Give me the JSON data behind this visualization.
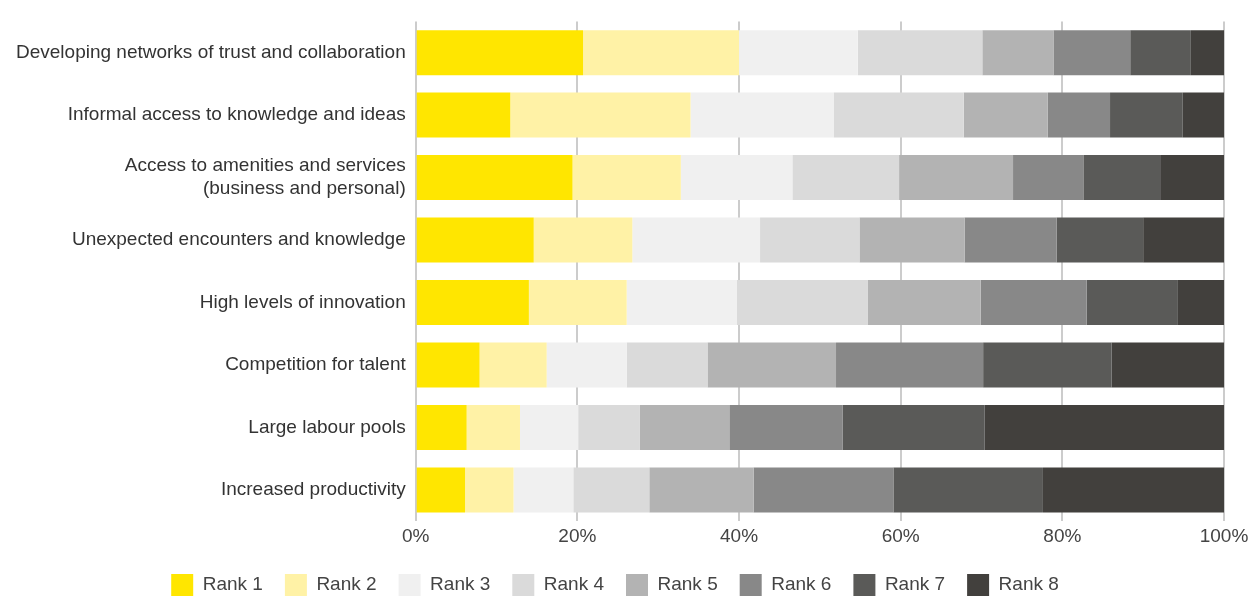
{
  "chart_data": {
    "type": "bar",
    "orientation": "horizontal",
    "stacked": true,
    "categories": [
      "Developing networks of trust and collaboration",
      "Informal access to knowledge and ideas",
      "Access to amenities and services\n(business and personal)",
      "Unexpected encounters and knowledge",
      "High levels of innovation",
      "Competition for talent",
      "Large labour pools",
      "Increased productivity"
    ],
    "series": [
      {
        "name": "Rank 1",
        "color": "#ffe600",
        "values": [
          20.7,
          11.7,
          19.4,
          14.6,
          14.0,
          7.9,
          6.3,
          6.1
        ]
      },
      {
        "name": "Rank 2",
        "color": "#fff2a6",
        "values": [
          19.3,
          22.3,
          13.4,
          12.2,
          12.1,
          8.3,
          6.6,
          6.0
        ]
      },
      {
        "name": "Rank 3",
        "color": "#f0f0f0",
        "values": [
          14.7,
          17.7,
          13.8,
          15.8,
          13.6,
          9.9,
          7.2,
          7.4
        ]
      },
      {
        "name": "Rank 4",
        "color": "#dadada",
        "values": [
          15.4,
          16.1,
          13.2,
          12.3,
          16.2,
          10.0,
          7.6,
          9.4
        ]
      },
      {
        "name": "Rank 5",
        "color": "#b3b3b3",
        "values": [
          8.8,
          10.4,
          14.1,
          13.0,
          14.0,
          15.9,
          11.1,
          12.9
        ]
      },
      {
        "name": "Rank 6",
        "color": "#888888",
        "values": [
          9.5,
          7.7,
          8.7,
          11.4,
          13.1,
          18.2,
          14.0,
          17.3
        ]
      },
      {
        "name": "Rank 7",
        "color": "#5a5a58",
        "values": [
          7.5,
          9.0,
          9.5,
          10.7,
          11.3,
          15.9,
          17.6,
          18.5
        ]
      },
      {
        "name": "Rank 8",
        "color": "#42403d",
        "values": [
          4.1,
          5.1,
          7.9,
          10.0,
          5.7,
          13.9,
          29.6,
          22.4
        ]
      }
    ],
    "xlim": [
      0,
      100
    ],
    "xticks": [
      {
        "value": 0,
        "label": "0%"
      },
      {
        "value": 20,
        "label": "20%"
      },
      {
        "value": 40,
        "label": "40%"
      },
      {
        "value": 60,
        "label": "60%"
      },
      {
        "value": 80,
        "label": "80%"
      },
      {
        "value": 100,
        "label": "100%"
      }
    ],
    "grid": "x",
    "legend": "bottom"
  }
}
